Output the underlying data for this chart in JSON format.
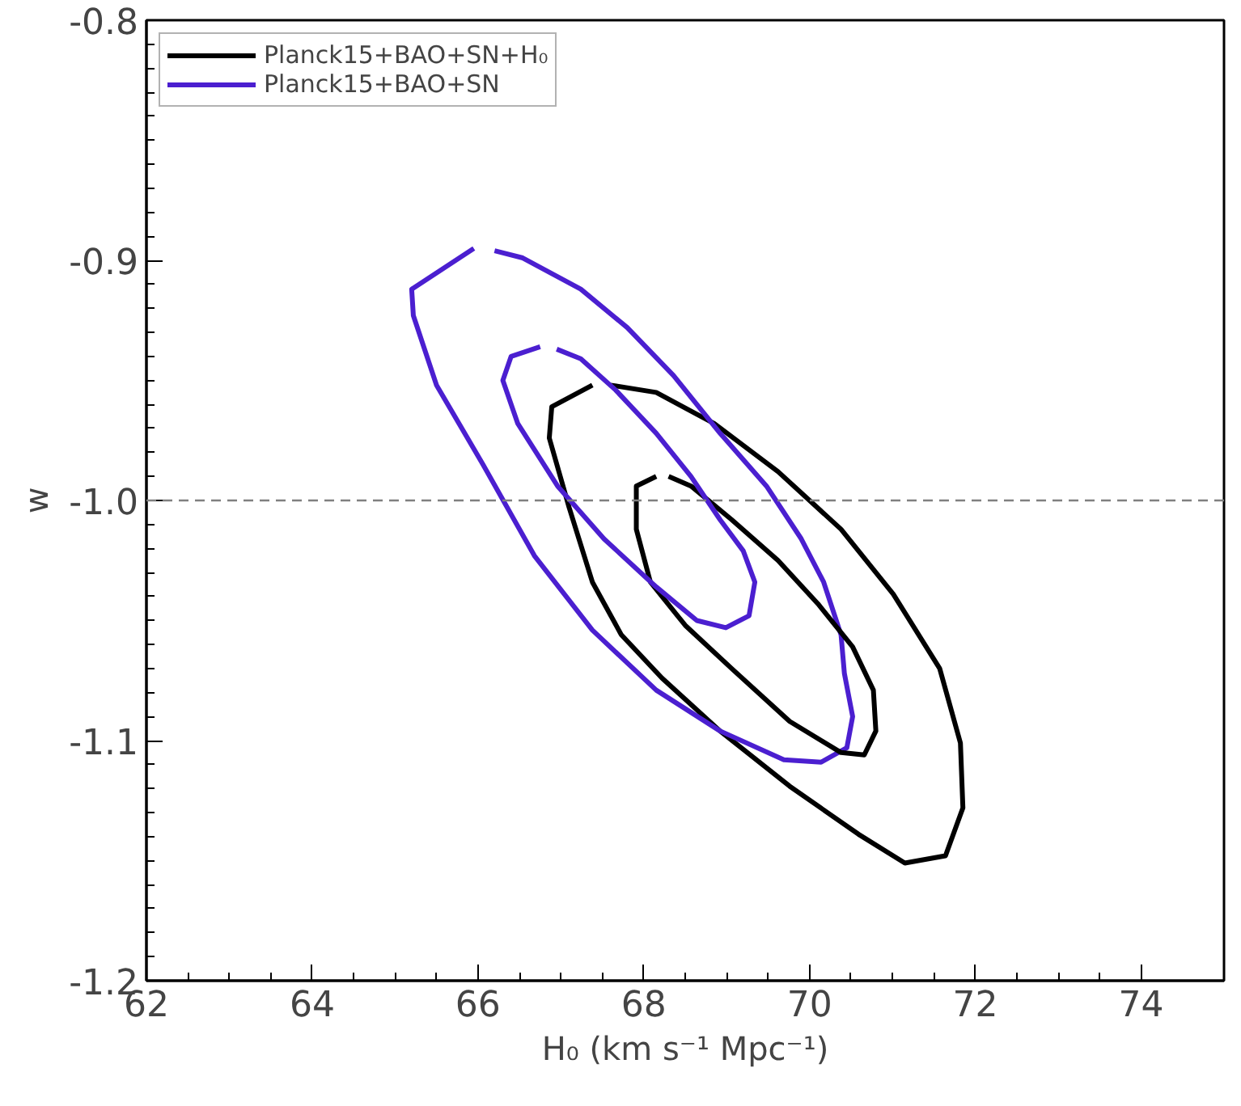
{
  "chart_data": {
    "type": "line",
    "xlabel": "H₀ (km s⁻¹ Mpc⁻¹)",
    "ylabel": "w",
    "xlim": [
      62,
      75
    ],
    "xticks": [
      62,
      64,
      66,
      68,
      70,
      72,
      74
    ],
    "ylim": [
      -1.2,
      -0.8
    ],
    "yticks": [
      {
        "value": -1.2,
        "label": "-1.2"
      },
      {
        "value": -1.1,
        "label": "-1.1"
      },
      {
        "value": -1.0,
        "label": "-1.0"
      },
      {
        "value": -0.9,
        "label": "-0.9"
      },
      {
        "value": -0.8,
        "label": "-0.8"
      }
    ],
    "legend": "top left",
    "grid": false,
    "marker": "none",
    "line_style": "solid",
    "ref_lines": [
      {
        "axis": "y",
        "value": -1.0,
        "label": null,
        "color": "#808080",
        "line_style": "dashed"
      }
    ],
    "series": [
      {
        "name": "Planck15+BAO+SN+H₀",
        "color": "#000000",
        "x": [
          67.38,
          66.89,
          66.86,
          67.1,
          67.38,
          67.73,
          68.22,
          68.92,
          69.76,
          70.59,
          71.15,
          71.64,
          71.85,
          71.82,
          71.57,
          71.01,
          70.38,
          69.62,
          68.85,
          68.15,
          67.6
        ],
        "values": [
          -0.952,
          -0.961,
          -0.974,
          -1.003,
          -1.034,
          -1.056,
          -1.074,
          -1.096,
          -1.119,
          -1.139,
          -1.151,
          -1.148,
          -1.128,
          -1.101,
          -1.07,
          -1.039,
          -1.012,
          -0.988,
          -0.968,
          -0.955,
          -0.952
        ]
      },
      {
        "name": "Planck15+BAO+SN",
        "color": "#4b1fd0",
        "x": [
          65.95,
          65.2,
          65.22,
          65.5,
          66.06,
          66.68,
          67.38,
          68.15,
          68.92,
          69.69,
          70.14,
          70.45,
          70.52,
          70.42,
          70.38,
          70.17,
          69.9,
          69.48,
          68.92,
          68.36,
          67.8,
          67.24,
          66.54,
          66.2
        ],
        "values": [
          -0.895,
          -0.912,
          -0.923,
          -0.952,
          -0.985,
          -1.023,
          -1.054,
          -1.079,
          -1.096,
          -1.108,
          -1.109,
          -1.103,
          -1.09,
          -1.072,
          -1.056,
          -1.034,
          -1.016,
          -0.994,
          -0.972,
          -0.948,
          -0.928,
          -0.912,
          -0.899,
          -0.896
        ]
      },
      {
        "color": "#000000",
        "x": [
          68.15,
          67.91,
          67.91,
          68.08,
          68.5,
          69.06,
          69.76,
          70.38,
          70.66,
          70.8,
          70.77,
          70.52,
          70.1,
          69.62,
          69.06,
          68.57,
          68.3
        ],
        "values": [
          -0.99,
          -0.994,
          -1.012,
          -1.034,
          -1.052,
          -1.07,
          -1.092,
          -1.105,
          -1.106,
          -1.096,
          -1.079,
          -1.061,
          -1.043,
          -1.025,
          -1.008,
          -0.994,
          -0.99
        ]
      },
      {
        "color": "#4b1fd0",
        "x": [
          66.75,
          66.4,
          66.3,
          66.48,
          66.96,
          67.52,
          68.15,
          68.64,
          68.99,
          69.27,
          69.34,
          69.2,
          68.92,
          68.57,
          68.15,
          67.66,
          67.24,
          66.95
        ],
        "values": [
          -0.936,
          -0.94,
          -0.95,
          -0.968,
          -0.994,
          -1.016,
          -1.036,
          -1.05,
          -1.053,
          -1.048,
          -1.034,
          -1.021,
          -1.008,
          -0.99,
          -0.972,
          -0.954,
          -0.941,
          -0.937
        ]
      }
    ]
  }
}
